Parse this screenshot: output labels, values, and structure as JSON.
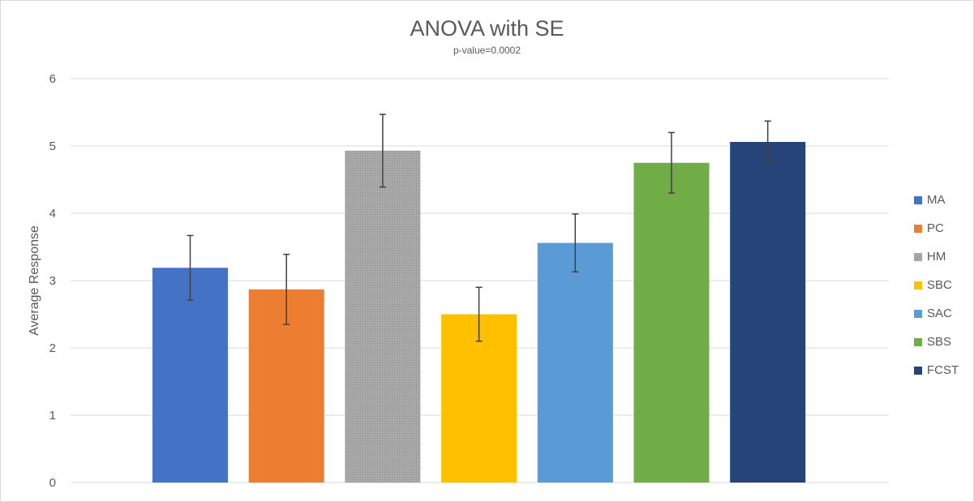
{
  "chart_data": {
    "type": "bar",
    "title": "ANOVA with SE",
    "subtitle": "p-value=0.0002",
    "xlabel": "",
    "ylabel": "Average Response",
    "ylim": [
      0,
      6
    ],
    "yticks": [
      "0",
      "1",
      "2",
      "3",
      "4",
      "5",
      "6"
    ],
    "grid": true,
    "legend_position": "right",
    "series": [
      {
        "name": "MA",
        "value": 3.19,
        "error": 0.48,
        "color": "#4472C4",
        "pattern": ""
      },
      {
        "name": "PC",
        "value": 2.87,
        "error": 0.52,
        "color": "#ED7D31",
        "pattern": ""
      },
      {
        "name": "HM",
        "value": 4.93,
        "error": 0.54,
        "color": "#A5A5A5",
        "pattern": "dots"
      },
      {
        "name": "SBC",
        "value": 2.5,
        "error": 0.4,
        "color": "#FFC000",
        "pattern": ""
      },
      {
        "name": "SAC",
        "value": 3.56,
        "error": 0.43,
        "color": "#5B9BD5",
        "pattern": ""
      },
      {
        "name": "SBS",
        "value": 4.75,
        "error": 0.45,
        "color": "#70AD47",
        "pattern": ""
      },
      {
        "name": "FCST",
        "value": 5.06,
        "error": 0.31,
        "color": "#264478",
        "pattern": ""
      }
    ]
  }
}
